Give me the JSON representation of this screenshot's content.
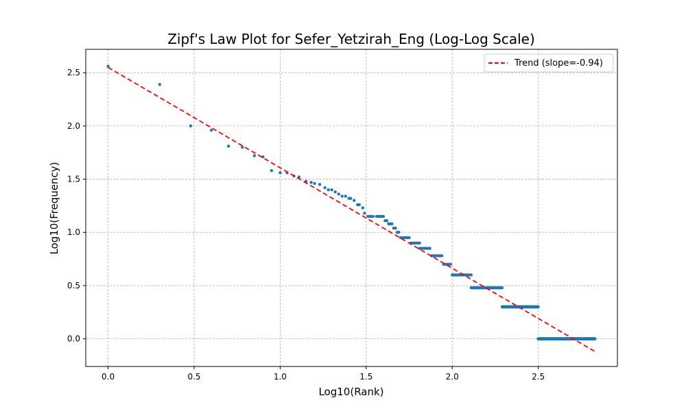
{
  "chart_data": {
    "type": "scatter",
    "title": "Zipf's Law Plot for Sefer_Yetzirah_Eng (Log-Log Scale)",
    "xlabel": "Log10(Rank)",
    "ylabel": "Log10(Frequency)",
    "xlim": [
      -0.13,
      2.96
    ],
    "ylim": [
      -0.26,
      2.72
    ],
    "xticks": [
      0.0,
      0.5,
      1.0,
      1.5,
      2.0,
      2.5
    ],
    "xtick_labels": [
      "0.0",
      "0.5",
      "1.0",
      "1.5",
      "2.0",
      "2.5"
    ],
    "yticks": [
      0.0,
      0.5,
      1.0,
      1.5,
      2.0,
      2.5
    ],
    "ytick_labels": [
      "0.0",
      "0.5",
      "1.0",
      "1.5",
      "2.0",
      "2.5"
    ],
    "grid": true,
    "legend_position": "upper right",
    "series": [
      {
        "type": "scatter",
        "color": "#1f77b4",
        "points": [
          [
            0.0,
            2.56
          ],
          [
            0.3,
            2.39
          ],
          [
            0.48,
            2.0
          ],
          [
            0.6,
            1.96
          ],
          [
            0.7,
            1.81
          ],
          [
            0.78,
            1.8
          ],
          [
            0.85,
            1.72
          ],
          [
            0.9,
            1.71
          ],
          [
            0.95,
            1.58
          ],
          [
            1.0,
            1.56
          ],
          [
            1.04,
            1.56
          ],
          [
            1.08,
            1.53
          ],
          [
            1.11,
            1.52
          ],
          [
            1.15,
            1.48
          ],
          [
            1.18,
            1.47
          ],
          [
            1.2,
            1.46
          ],
          [
            1.23,
            1.45
          ],
          [
            1.26,
            1.42
          ],
          [
            1.28,
            1.4
          ],
          [
            1.3,
            1.4
          ],
          [
            1.32,
            1.38
          ],
          [
            1.34,
            1.36
          ],
          [
            1.36,
            1.34
          ],
          [
            1.38,
            1.34
          ],
          [
            1.4,
            1.32
          ],
          [
            1.41,
            1.32
          ],
          [
            1.43,
            1.3
          ],
          [
            1.45,
            1.26
          ],
          [
            1.46,
            1.26
          ],
          [
            1.48,
            1.23
          ],
          [
            1.49,
            1.18
          ],
          [
            1.51,
            1.15
          ],
          [
            1.52,
            1.15
          ],
          [
            1.53,
            1.15
          ],
          [
            1.54,
            1.15
          ],
          [
            1.56,
            1.15
          ],
          [
            1.57,
            1.15
          ],
          [
            1.58,
            1.15
          ],
          [
            1.59,
            1.15
          ],
          [
            1.6,
            1.15
          ],
          [
            1.61,
            1.11
          ],
          [
            1.62,
            1.11
          ],
          [
            1.63,
            1.08
          ],
          [
            1.64,
            1.08
          ],
          [
            1.65,
            1.08
          ],
          [
            1.66,
            1.04
          ],
          [
            1.67,
            1.04
          ],
          [
            1.68,
            1.0
          ],
          [
            1.69,
            1.0
          ],
          [
            1.7,
            0.95
          ],
          [
            1.71,
            0.95
          ],
          [
            1.72,
            0.95
          ],
          [
            1.73,
            0.95
          ],
          [
            1.74,
            0.95
          ],
          [
            1.75,
            0.95
          ],
          [
            1.76,
            0.9
          ],
          [
            1.77,
            0.9
          ],
          [
            1.78,
            0.9
          ],
          [
            1.79,
            0.9
          ],
          [
            1.8,
            0.9
          ],
          [
            1.81,
            0.9
          ],
          [
            1.81,
            0.85
          ],
          [
            1.82,
            0.85
          ],
          [
            1.83,
            0.85
          ],
          [
            1.84,
            0.85
          ],
          [
            1.85,
            0.85
          ],
          [
            1.86,
            0.85
          ],
          [
            1.87,
            0.85
          ],
          [
            1.88,
            0.78
          ],
          [
            1.89,
            0.78
          ],
          [
            1.9,
            0.78
          ],
          [
            1.91,
            0.78
          ],
          [
            1.92,
            0.78
          ],
          [
            1.93,
            0.78
          ],
          [
            1.94,
            0.78
          ],
          [
            1.95,
            0.7
          ],
          [
            1.96,
            0.7
          ],
          [
            1.97,
            0.7
          ],
          [
            1.98,
            0.7
          ],
          [
            1.99,
            0.7
          ]
        ],
        "steps": [
          {
            "y": 0.6,
            "x_from": 2.0,
            "x_to": 2.11,
            "count": 13
          },
          {
            "y": 0.48,
            "x_from": 2.11,
            "x_to": 2.29,
            "count": 66
          },
          {
            "y": 0.3,
            "x_from": 2.29,
            "x_to": 2.5,
            "count": 120
          },
          {
            "y": 0.0,
            "x_from": 2.5,
            "x_to": 2.83,
            "count": 359
          }
        ]
      },
      {
        "type": "line",
        "name": "Trend (slope=-0.94)",
        "color": "#ff0000",
        "dashed": true,
        "slope": -0.94,
        "x": [
          0.0,
          2.83
        ],
        "y": [
          2.55,
          -0.12
        ]
      }
    ]
  }
}
